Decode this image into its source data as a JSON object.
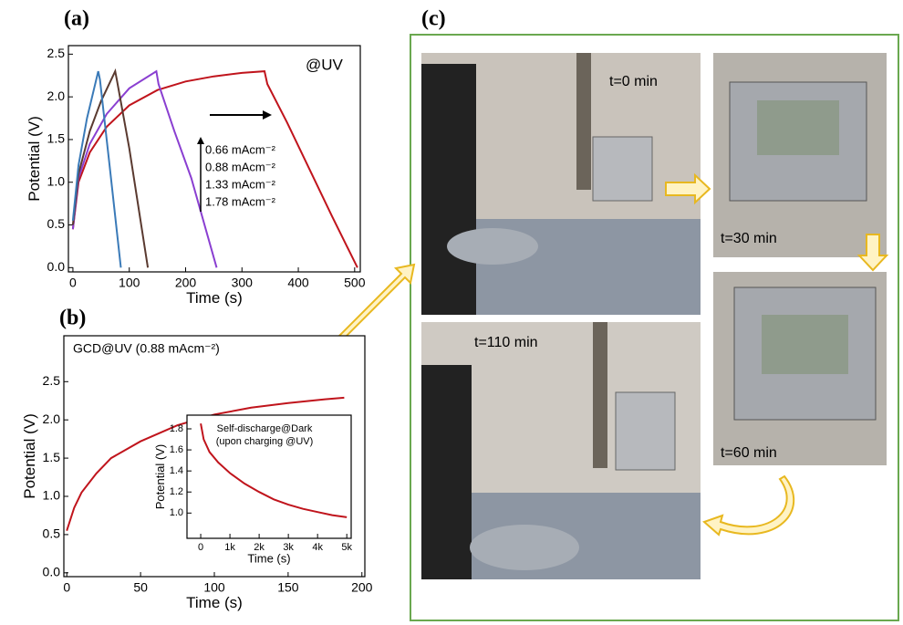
{
  "chart_data": [
    {
      "type": "line",
      "panel_label": "(a)",
      "x_label": "Time (s)",
      "y_label": "Potential (V)",
      "annotation": "@UV",
      "xlim": [
        -8,
        510
      ],
      "xticks": [
        0,
        100,
        200,
        300,
        400,
        500
      ],
      "ylim": [
        -0.05,
        2.6
      ],
      "yticks": [
        {
          "value": 0,
          "label": "0.0"
        },
        0.5,
        {
          "value": 1,
          "label": "1.0"
        },
        1.5,
        {
          "value": 2,
          "label": "2.0"
        },
        2.5
      ],
      "series": [
        {
          "name": "0.66 mAcm⁻²",
          "color": "#c0141c",
          "x": [
            0,
            10,
            30,
            60,
            100,
            150,
            200,
            250,
            300,
            340,
            345,
            380,
            420,
            460,
            505
          ],
          "values": [
            0.45,
            1.0,
            1.35,
            1.65,
            1.9,
            2.08,
            2.18,
            2.24,
            2.28,
            2.3,
            2.15,
            1.7,
            1.15,
            0.6,
            0
          ]
        },
        {
          "name": "0.88 mAcm⁻²",
          "color": "#8a3fd1",
          "x": [
            0,
            10,
            30,
            60,
            100,
            148,
            152,
            180,
            210,
            255
          ],
          "values": [
            0.45,
            1.05,
            1.45,
            1.8,
            2.1,
            2.3,
            2.15,
            1.6,
            1.05,
            0
          ]
        },
        {
          "name": "1.33 mAcm⁻²",
          "color": "#5a3a30",
          "x": [
            0,
            10,
            30,
            50,
            75,
            78,
            100,
            133
          ],
          "values": [
            0.5,
            1.1,
            1.6,
            1.95,
            2.3,
            2.2,
            1.4,
            0
          ]
        },
        {
          "name": "1.78 mAcm⁻²",
          "color": "#3a7ab8",
          "x": [
            0,
            10,
            25,
            45,
            48,
            65,
            85
          ],
          "values": [
            0.55,
            1.2,
            1.75,
            2.3,
            2.2,
            1.2,
            0
          ]
        }
      ]
    },
    {
      "type": "line",
      "panel_label": "(b)",
      "x_label": "Time (s)",
      "y_label": "Potential (V)",
      "annotation": "GCD@UV (0.88 mAcm⁻²)",
      "xlim": [
        -2,
        202
      ],
      "xticks": [
        0,
        50,
        100,
        150,
        200
      ],
      "ylim": [
        -0.05,
        3.1
      ],
      "yticks": [
        {
          "value": 0,
          "label": "0.0"
        },
        0.5,
        {
          "value": 1,
          "label": "1.0"
        },
        1.5,
        {
          "value": 2,
          "label": "2.0"
        },
        2.5
      ],
      "series": [
        {
          "color": "#c0141c",
          "x": [
            0,
            5,
            10,
            20,
            30,
            50,
            75,
            100,
            125,
            150,
            175,
            188
          ],
          "values": [
            0.55,
            0.85,
            1.05,
            1.3,
            1.5,
            1.72,
            1.93,
            2.07,
            2.16,
            2.22,
            2.27,
            2.29
          ]
        }
      ]
    },
    {
      "type": "line",
      "x_label": "Time (s)",
      "y_label": "Potential (V)",
      "annotation": [
        "Self-discharge@Dark",
        "(upon charging @UV)"
      ],
      "xlim": [
        -470,
        5150
      ],
      "xticks": [
        0,
        {
          "value": 1000,
          "label": "1k"
        },
        {
          "value": 2000,
          "label": "2k"
        },
        {
          "value": 3000,
          "label": "3k"
        },
        {
          "value": 4000,
          "label": "4k"
        },
        {
          "value": 5000,
          "label": "5k"
        }
      ],
      "ylim": [
        0.76,
        1.93
      ],
      "yticks": [
        {
          "value": 1,
          "label": "1.0"
        },
        1.2,
        1.4,
        1.6,
        1.8
      ],
      "series": [
        {
          "color": "#c0141c",
          "x": [
            0,
            100,
            300,
            600,
            1000,
            1500,
            2000,
            2500,
            3000,
            3500,
            4000,
            4500,
            5000
          ],
          "values": [
            1.85,
            1.7,
            1.58,
            1.48,
            1.38,
            1.28,
            1.2,
            1.13,
            1.08,
            1.04,
            1.01,
            0.98,
            0.96
          ]
        }
      ]
    }
  ],
  "photo_panel": {
    "panel_label": "(c)",
    "labels": [
      "t=0 min",
      "t=30 min",
      "t=60 min",
      "t=110 min"
    ]
  }
}
